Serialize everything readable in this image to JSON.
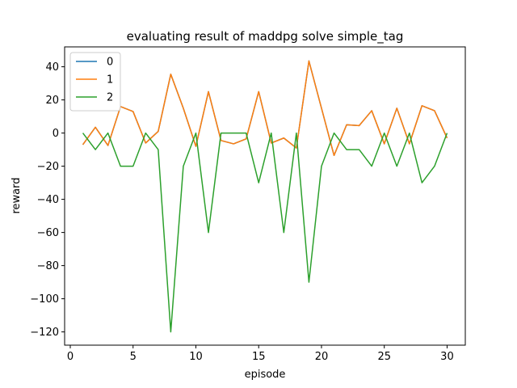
{
  "chart_data": {
    "type": "line",
    "title": "evaluating result of maddpg solve simple_tag",
    "xlabel": "episode",
    "ylabel": "reward",
    "xlim": [
      -0.45,
      31.45
    ],
    "ylim": [
      -128,
      52
    ],
    "xticks": [
      0,
      5,
      10,
      15,
      20,
      25,
      30
    ],
    "yticks": [
      -120,
      -100,
      -80,
      -60,
      -40,
      -20,
      0,
      20,
      40
    ],
    "grid": false,
    "legend_position": "top-left",
    "x": [
      1,
      2,
      3,
      4,
      5,
      6,
      7,
      8,
      9,
      10,
      11,
      12,
      13,
      14,
      15,
      16,
      17,
      18,
      19,
      20,
      21,
      22,
      23,
      24,
      25,
      26,
      27,
      28,
      29,
      30
    ],
    "series": [
      {
        "name": "0",
        "color": "#1f77b4",
        "values": [
          -7,
          3.5,
          -7.5,
          16,
          13,
          -6,
          1,
          35.5,
          15,
          -8,
          25,
          -4.5,
          -6.5,
          -3.5,
          25,
          -6,
          -3,
          -9,
          43.5,
          15,
          -13.5,
          5,
          4.5,
          13.5,
          -6.5,
          15,
          -6.5,
          16.5,
          13.5,
          -3
        ]
      },
      {
        "name": "1",
        "color": "#ff7f0e",
        "values": [
          -7,
          3.5,
          -7.5,
          16,
          13,
          -6,
          1,
          35.5,
          15,
          -8,
          25,
          -4.5,
          -6.5,
          -3.5,
          25,
          -6,
          -3,
          -9,
          43.5,
          15,
          -13.5,
          5,
          4.5,
          13.5,
          -6.5,
          15,
          -6.5,
          16.5,
          13.5,
          -3
        ]
      },
      {
        "name": "2",
        "color": "#2ca02c",
        "values": [
          0,
          -10,
          0,
          -20,
          -20,
          0,
          -10,
          -120,
          -20,
          0,
          -60,
          0,
          0,
          0,
          -30,
          0,
          -60,
          0,
          -90,
          -20,
          0,
          -10,
          -10,
          -20,
          0,
          -20,
          0,
          -30,
          -20,
          0
        ]
      }
    ]
  }
}
